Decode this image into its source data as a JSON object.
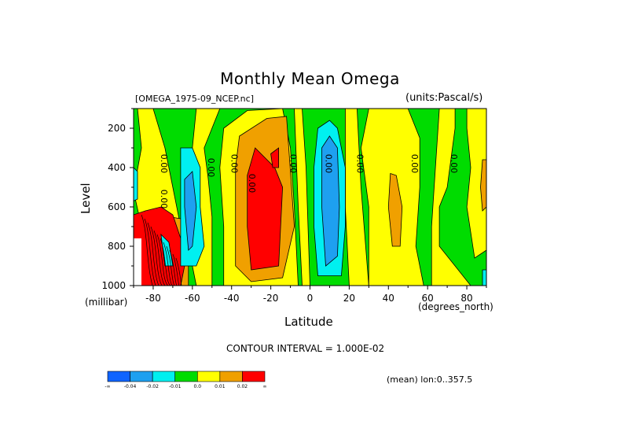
{
  "chart_data": {
    "type": "heatmap",
    "title": "Monthly Mean Omega",
    "file_label": "[OMEGA_1975-09_NCEP.nc]",
    "units_label": "(units:Pascal/s)",
    "xlabel": "Latitude",
    "xunit": "(degrees_north)",
    "ylabel": "Level",
    "yunit": "(millibar)",
    "xlim": [
      -90,
      90
    ],
    "ylim": [
      1000,
      100
    ],
    "x_ticks": [
      "-80",
      "-60",
      "-40",
      "-20",
      "0",
      "20",
      "40",
      "60",
      "80"
    ],
    "y_ticks": [
      "200",
      "400",
      "600",
      "800",
      "1000"
    ],
    "contour_interval": "CONTOUR INTERVAL = 1.000E-02",
    "mean_note": "(mean) lon:0..357.5",
    "contour_labels": [
      "0.00",
      "0.00",
      "0.00",
      "0.00",
      "0.00",
      "0.00",
      "0.00",
      "0.00",
      "0.00",
      "0.00"
    ],
    "colorbar": {
      "labels": [
        "-∞",
        "-0.04",
        "-0.02",
        "-0.01",
        "0.0",
        "0.01",
        "0.02",
        "∞"
      ],
      "colors": [
        "#0f64ff",
        "#1ea0f0",
        "#00f0f0",
        "#00dc00",
        "#ffff00",
        "#f0a000",
        "#ff0000"
      ]
    },
    "band_colors": {
      "green": "#00dc00",
      "yellow": "#ffff00",
      "orange": "#f0a000",
      "red": "#ff0000",
      "cyan": "#00f0f0",
      "blue": "#1ea0f0"
    }
  }
}
